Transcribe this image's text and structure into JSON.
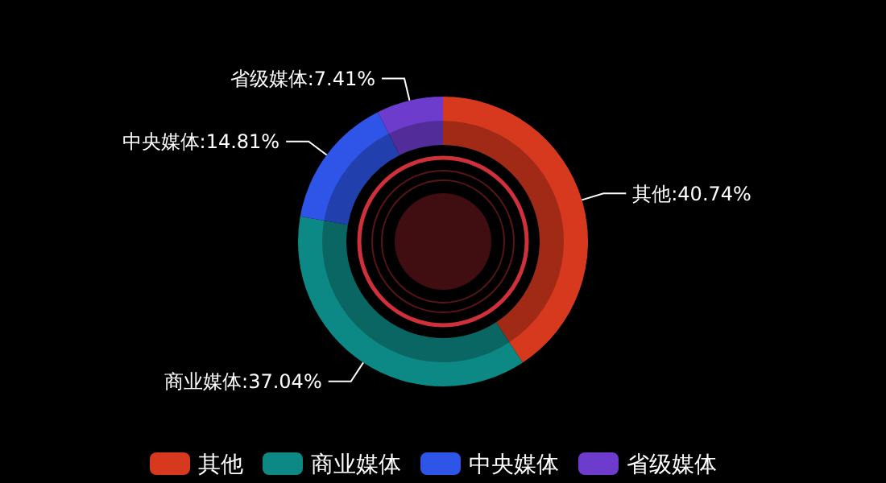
{
  "chart_data": {
    "type": "donut",
    "categories": [
      "其他",
      "商业媒体",
      "中央媒体",
      "省级媒体"
    ],
    "values": [
      40.74,
      37.04,
      14.81,
      7.41
    ],
    "colors": [
      "#d7391f",
      "#0c8985",
      "#2e54e8",
      "#6e3ccc"
    ],
    "value_labels": [
      "其他:40.74%",
      "商业媒体:37.04%",
      "中央媒体:14.81%",
      "省级媒体:7.41%"
    ],
    "legend": "bottom"
  }
}
